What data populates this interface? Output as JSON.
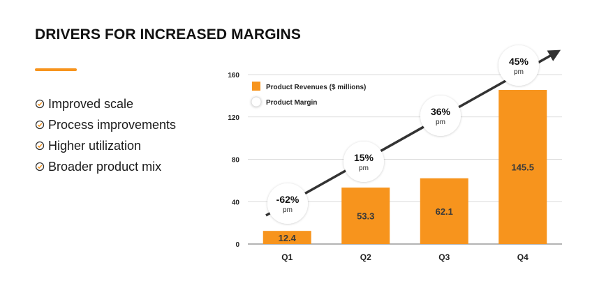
{
  "slide": {
    "title": "DRIVERS FOR INCREASED MARGINS",
    "accent_color": "#F7941D",
    "bullets": [
      {
        "icon": "check-circle-icon",
        "text": "Improved scale"
      },
      {
        "icon": "check-circle-icon",
        "text": "Process improvements"
      },
      {
        "icon": "check-circle-icon",
        "text": "Higher utilization"
      },
      {
        "icon": "check-circle-icon",
        "text": "Broader product mix"
      }
    ]
  },
  "chart_data": {
    "type": "bar",
    "categories": [
      "Q1",
      "Q2",
      "Q3",
      "Q4"
    ],
    "series": [
      {
        "name": "Product Revenues ($ millions)",
        "values": [
          12.4,
          53.3,
          62.1,
          145.5
        ],
        "color": "#F7941D"
      },
      {
        "name": "Product Margin",
        "values": [
          "-62%",
          "15%",
          "36%",
          "45%"
        ],
        "unit_label": "pm"
      }
    ],
    "data_labels": [
      "12.4",
      "53.3",
      "62.1",
      "145.5"
    ],
    "ylim": [
      0,
      160
    ],
    "yticks": [
      0,
      40,
      80,
      120,
      160
    ],
    "grid": true,
    "legend_position": "top-left",
    "trend_arrow": true,
    "title": "",
    "xlabel": "",
    "ylabel": ""
  }
}
